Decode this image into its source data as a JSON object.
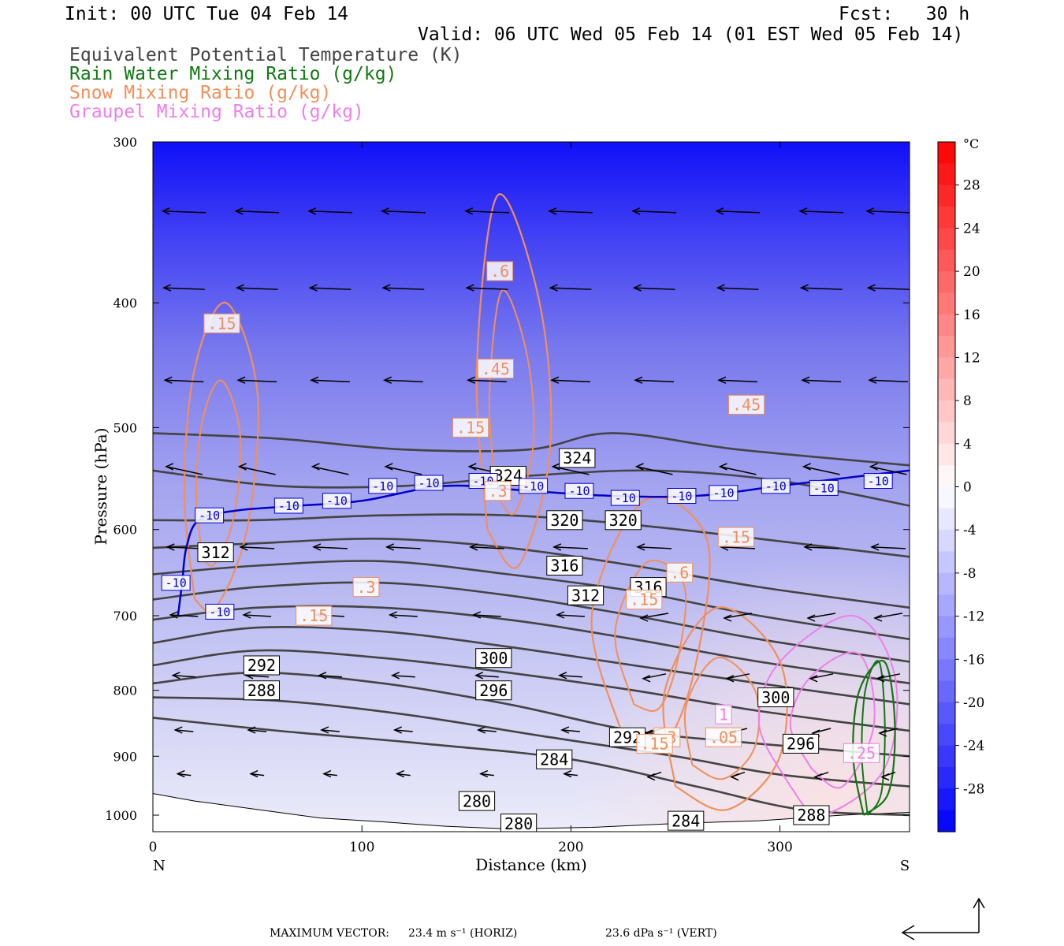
{
  "header": {
    "init": "Init: 00 UTC Tue 04 Feb 14",
    "fcst": "Fcst:   30 h",
    "valid": "Valid: 06 UTC Wed 05 Feb 14 (01 EST Wed 05 Feb 14)"
  },
  "legend": [
    {
      "label": "Equivalent Potential Temperature (K)",
      "color": "#444444"
    },
    {
      "label": "Rain Water Mixing Ratio (g/kg)",
      "color": "#127812"
    },
    {
      "label": "Snow Mixing Ratio (g/kg)",
      "color": "#f28f5a"
    },
    {
      "label": "Graupel Mixing Ratio (g/kg)",
      "color": "#ee7fea"
    }
  ],
  "footer": {
    "max_vector_label": "MAXIMUM VECTOR:",
    "horiz": "23.4 m s⁻¹ (HORIZ)",
    "vert": "23.6 dPa s⁻¹ (VERT)"
  },
  "chart_data": {
    "type": "cross-section",
    "xlabel": "Distance (km)",
    "ylabel": "Pressure (hPa)",
    "xlim": [
      0,
      362
    ],
    "ylim": [
      1030,
      300
    ],
    "y_scale": "log-pressure",
    "x_ticks": [
      "0",
      "100",
      "200",
      "300"
    ],
    "y_ticks": [
      "300",
      "400",
      "500",
      "600",
      "700",
      "800",
      "900",
      "1000"
    ],
    "x_end_labels": {
      "left": "N",
      "right": "S"
    },
    "colorbar": {
      "unit": "°C",
      "ticks": [
        "28",
        "24",
        "20",
        "16",
        "12",
        "8",
        "4",
        "0",
        "-4",
        "-8",
        "-12",
        "-16",
        "-20",
        "-24",
        "-28"
      ],
      "range": [
        -32,
        32
      ],
      "cold_color": "#0000ff",
      "neutral_color": "#ffffff",
      "warm_color": "#ff0000"
    },
    "theta_e_labels": [
      "324",
      "324",
      "320",
      "320",
      "316",
      "316",
      "312",
      "312",
      "300",
      "300",
      "296",
      "296",
      "292",
      "292",
      "288",
      "288",
      "284",
      "284",
      "280",
      "280"
    ],
    "theta_e_contours": [
      {
        "value": 284,
        "points": [
          [
            0,
            840
          ],
          [
            60,
            860
          ],
          [
            130,
            880
          ],
          [
            200,
            905
          ],
          [
            260,
            950
          ],
          [
            310,
            990
          ],
          [
            362,
            1000
          ]
        ]
      },
      {
        "value": 288,
        "points": [
          [
            0,
            810
          ],
          [
            60,
            815
          ],
          [
            120,
            835
          ],
          [
            190,
            870
          ],
          [
            250,
            900
          ],
          [
            300,
            930
          ],
          [
            362,
            950
          ]
        ]
      },
      {
        "value": 292,
        "points": [
          [
            0,
            790
          ],
          [
            50,
            775
          ],
          [
            110,
            790
          ],
          [
            170,
            820
          ],
          [
            230,
            860
          ],
          [
            290,
            880
          ],
          [
            362,
            900
          ]
        ]
      },
      {
        "value": 296,
        "points": [
          [
            0,
            765
          ],
          [
            50,
            745
          ],
          [
            110,
            755
          ],
          [
            170,
            775
          ],
          [
            230,
            800
          ],
          [
            290,
            830
          ],
          [
            362,
            860
          ]
        ]
      },
      {
        "value": 300,
        "points": [
          [
            0,
            735
          ],
          [
            50,
            715
          ],
          [
            110,
            720
          ],
          [
            170,
            740
          ],
          [
            230,
            765
          ],
          [
            290,
            790
          ],
          [
            362,
            820
          ]
        ]
      },
      {
        "value": 304,
        "points": [
          [
            0,
            705
          ],
          [
            50,
            690
          ],
          [
            110,
            690
          ],
          [
            170,
            705
          ],
          [
            230,
            730
          ],
          [
            290,
            760
          ],
          [
            362,
            790
          ]
        ]
      },
      {
        "value": 308,
        "points": [
          [
            0,
            680
          ],
          [
            50,
            665
          ],
          [
            110,
            660
          ],
          [
            170,
            675
          ],
          [
            230,
            700
          ],
          [
            290,
            730
          ],
          [
            362,
            760
          ]
        ]
      },
      {
        "value": 312,
        "points": [
          [
            0,
            650
          ],
          [
            50,
            640
          ],
          [
            110,
            635
          ],
          [
            170,
            650
          ],
          [
            230,
            670
          ],
          [
            290,
            700
          ],
          [
            362,
            730
          ]
        ]
      },
      {
        "value": 316,
        "points": [
          [
            0,
            620
          ],
          [
            50,
            615
          ],
          [
            110,
            610
          ],
          [
            170,
            620
          ],
          [
            230,
            640
          ],
          [
            290,
            665
          ],
          [
            362,
            690
          ]
        ]
      },
      {
        "value": 320,
        "points": [
          [
            0,
            590
          ],
          [
            50,
            590
          ],
          [
            110,
            585
          ],
          [
            170,
            585
          ],
          [
            230,
            595
          ],
          [
            290,
            610
          ],
          [
            362,
            630
          ]
        ]
      },
      {
        "value": 324,
        "points": [
          [
            0,
            540
          ],
          [
            60,
            555
          ],
          [
            120,
            555
          ],
          [
            180,
            545
          ],
          [
            240,
            540
          ],
          [
            300,
            550
          ],
          [
            362,
            575
          ]
        ]
      },
      {
        "value": 328,
        "points": [
          [
            0,
            505
          ],
          [
            60,
            510
          ],
          [
            120,
            520
          ],
          [
            180,
            520
          ],
          [
            220,
            505
          ],
          [
            280,
            520
          ],
          [
            362,
            535
          ]
        ]
      }
    ],
    "minus10_isotherm": {
      "label": "-10",
      "color": "#0000cc",
      "points": [
        [
          12,
          700
        ],
        [
          14,
          660
        ],
        [
          16,
          620
        ],
        [
          22,
          590
        ],
        [
          40,
          580
        ],
        [
          70,
          575
        ],
        [
          100,
          570
        ],
        [
          140,
          555
        ],
        [
          180,
          560
        ],
        [
          220,
          565
        ],
        [
          260,
          565
        ],
        [
          300,
          555
        ],
        [
          340,
          545
        ],
        [
          362,
          540
        ]
      ]
    },
    "snow_labels": [
      ".15",
      ".6",
      ".45",
      ".15",
      ".3",
      ".15",
      ".3",
      ".45",
      ".15",
      ".6",
      ".15",
      ".3",
      ".15",
      ".05"
    ],
    "graupel_labels": [
      "1",
      ".25"
    ],
    "snow_contours": [
      [
        [
          20,
          680
        ],
        [
          15,
          560
        ],
        [
          20,
          450
        ],
        [
          35,
          400
        ],
        [
          50,
          470
        ],
        [
          45,
          600
        ],
        [
          30,
          690
        ],
        [
          20,
          680
        ]
      ],
      [
        [
          160,
          600
        ],
        [
          155,
          450
        ],
        [
          165,
          330
        ],
        [
          185,
          400
        ],
        [
          190,
          520
        ],
        [
          175,
          640
        ],
        [
          160,
          600
        ]
      ],
      [
        [
          225,
          870
        ],
        [
          210,
          700
        ],
        [
          235,
          570
        ],
        [
          265,
          610
        ],
        [
          260,
          760
        ],
        [
          245,
          880
        ],
        [
          225,
          870
        ]
      ],
      [
        [
          250,
          950
        ],
        [
          245,
          800
        ],
        [
          270,
          690
        ],
        [
          300,
          760
        ],
        [
          300,
          900
        ],
        [
          275,
          990
        ],
        [
          250,
          950
        ]
      ]
    ],
    "graupel_contours": [
      [
        [
          305,
          950
        ],
        [
          290,
          850
        ],
        [
          300,
          760
        ],
        [
          335,
          700
        ],
        [
          355,
          780
        ],
        [
          350,
          920
        ],
        [
          320,
          1000
        ],
        [
          305,
          950
        ]
      ],
      [
        [
          315,
          920
        ],
        [
          305,
          850
        ],
        [
          315,
          780
        ],
        [
          338,
          750
        ],
        [
          345,
          850
        ],
        [
          330,
          950
        ],
        [
          315,
          920
        ]
      ]
    ],
    "rain_contours": [
      [
        [
          340,
          1000
        ],
        [
          335,
          900
        ],
        [
          338,
          800
        ],
        [
          350,
          760
        ],
        [
          355,
          850
        ],
        [
          352,
          960
        ],
        [
          340,
          1000
        ]
      ]
    ]
  }
}
